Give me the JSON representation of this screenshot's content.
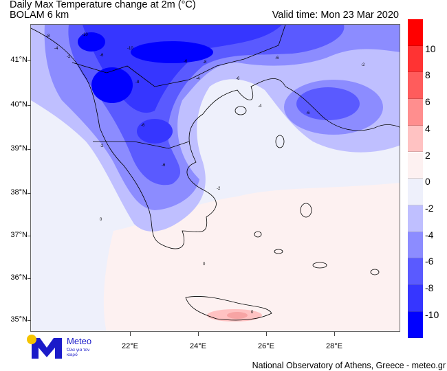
{
  "header": {
    "title": "Daily Max Temperature change at 2m (°C)",
    "subtitle": "BOLAM 6 km",
    "valid_time": "Valid time: Mon 23 Mar 2020"
  },
  "map": {
    "lat_labels": [
      "41°N",
      "40°N",
      "39°N",
      "38°N",
      "37°N",
      "36°N",
      "35°N"
    ],
    "lon_labels": [
      "22°E",
      "24°E",
      "26°E",
      "28°E"
    ],
    "contour_labels": [
      "-8",
      "-10",
      "-4",
      "-6",
      "-8",
      "-10",
      "-6",
      "-8",
      "-2",
      "-2",
      "-6",
      "-6",
      "-4",
      "-6",
      "-6",
      "-4",
      "-6",
      "-2",
      "0",
      "0",
      "-2",
      "0"
    ]
  },
  "colorbar": {
    "labels": [
      "10",
      "8",
      "6",
      "4",
      "2",
      "0",
      "-2",
      "-4",
      "-6",
      "-8",
      "-10"
    ],
    "colors": [
      "#ff0000",
      "#ff3333",
      "#ff5c5c",
      "#ff8e8e",
      "#ffc2c2",
      "#fdf1f1",
      "#eef0fb",
      "#bfbfff",
      "#8c8cff",
      "#5a5aff",
      "#3636ff",
      "#0000ff"
    ]
  },
  "logo": {
    "name": "Meteo",
    "slogan": "Όλα για τον καιρό",
    "color": "#1b1bc9",
    "sun_color": "#f5c400"
  },
  "footer": {
    "credit": "National Observatory of Athens, Greece - meteo.gr"
  }
}
